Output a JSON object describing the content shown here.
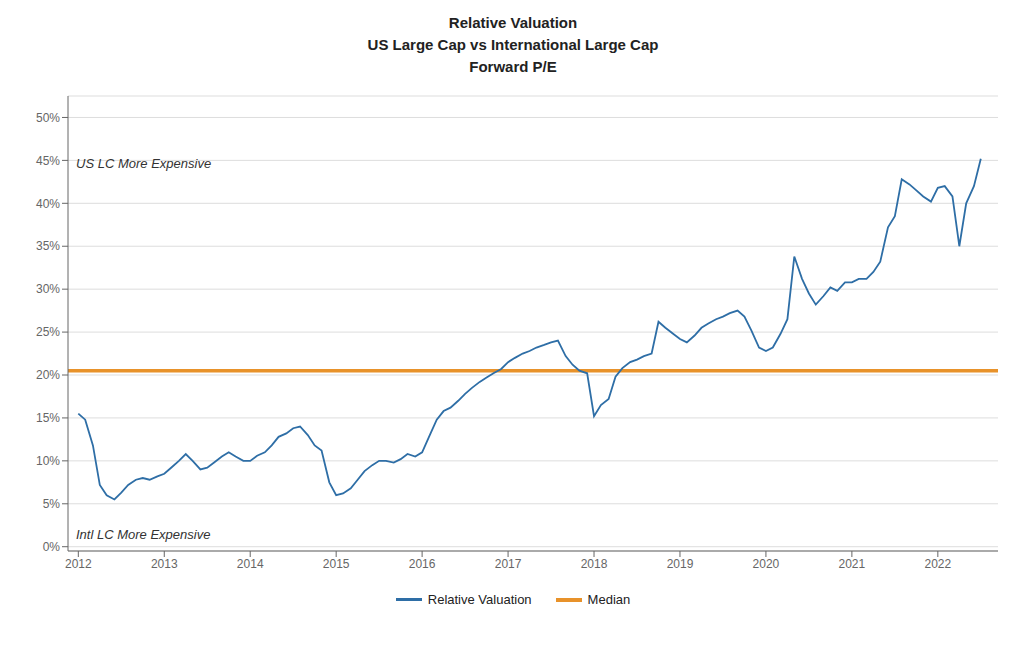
{
  "chart_data": {
    "type": "line",
    "title": "Relative Valuation\nUS Large Cap vs International Large Cap\nForward P/E",
    "x": [
      2012.0,
      2012.08,
      2012.17,
      2012.25,
      2012.33,
      2012.42,
      2012.5,
      2012.58,
      2012.67,
      2012.75,
      2012.83,
      2012.92,
      2013.0,
      2013.08,
      2013.17,
      2013.25,
      2013.33,
      2013.42,
      2013.5,
      2013.58,
      2013.67,
      2013.75,
      2013.83,
      2013.92,
      2014.0,
      2014.08,
      2014.17,
      2014.25,
      2014.33,
      2014.42,
      2014.5,
      2014.58,
      2014.67,
      2014.75,
      2014.83,
      2014.92,
      2015.0,
      2015.08,
      2015.17,
      2015.25,
      2015.33,
      2015.42,
      2015.5,
      2015.58,
      2015.67,
      2015.75,
      2015.83,
      2015.92,
      2016.0,
      2016.08,
      2016.17,
      2016.25,
      2016.33,
      2016.42,
      2016.5,
      2016.58,
      2016.67,
      2016.75,
      2016.83,
      2016.92,
      2017.0,
      2017.08,
      2017.17,
      2017.25,
      2017.33,
      2017.42,
      2017.5,
      2017.58,
      2017.67,
      2017.75,
      2017.83,
      2017.92,
      2018.0,
      2018.08,
      2018.17,
      2018.25,
      2018.33,
      2018.42,
      2018.5,
      2018.58,
      2018.67,
      2018.75,
      2018.83,
      2018.92,
      2019.0,
      2019.08,
      2019.17,
      2019.25,
      2019.33,
      2019.42,
      2019.5,
      2019.58,
      2019.67,
      2019.75,
      2019.83,
      2019.92,
      2020.0,
      2020.08,
      2020.17,
      2020.25,
      2020.33,
      2020.42,
      2020.5,
      2020.58,
      2020.67,
      2020.75,
      2020.83,
      2020.92,
      2021.0,
      2021.08,
      2021.17,
      2021.25,
      2021.33,
      2021.42,
      2021.5,
      2021.58,
      2021.67,
      2021.75,
      2021.83,
      2021.92,
      2022.0,
      2022.08,
      2022.17,
      2022.25,
      2022.33,
      2022.42,
      2022.5
    ],
    "series": [
      {
        "name": "Relative Valuation",
        "color": "#2E6EA6",
        "values": [
          0.155,
          0.148,
          0.118,
          0.072,
          0.06,
          0.055,
          0.063,
          0.072,
          0.078,
          0.08,
          0.078,
          0.082,
          0.085,
          0.092,
          0.1,
          0.108,
          0.1,
          0.09,
          0.092,
          0.098,
          0.105,
          0.11,
          0.105,
          0.1,
          0.1,
          0.106,
          0.11,
          0.118,
          0.128,
          0.132,
          0.138,
          0.14,
          0.13,
          0.118,
          0.112,
          0.075,
          0.06,
          0.062,
          0.068,
          0.078,
          0.088,
          0.095,
          0.1,
          0.1,
          0.098,
          0.102,
          0.108,
          0.105,
          0.11,
          0.128,
          0.148,
          0.158,
          0.162,
          0.17,
          0.178,
          0.185,
          0.192,
          0.197,
          0.202,
          0.207,
          0.215,
          0.22,
          0.225,
          0.228,
          0.232,
          0.235,
          0.238,
          0.24,
          0.222,
          0.212,
          0.205,
          0.202,
          0.152,
          0.165,
          0.172,
          0.198,
          0.208,
          0.215,
          0.218,
          0.222,
          0.225,
          0.262,
          0.255,
          0.248,
          0.242,
          0.238,
          0.246,
          0.255,
          0.26,
          0.265,
          0.268,
          0.272,
          0.275,
          0.268,
          0.252,
          0.232,
          0.228,
          0.232,
          0.248,
          0.265,
          0.338,
          0.312,
          0.295,
          0.282,
          0.292,
          0.302,
          0.298,
          0.308,
          0.308,
          0.312,
          0.312,
          0.32,
          0.332,
          0.372,
          0.385,
          0.428,
          0.422,
          0.415,
          0.408,
          0.402,
          0.418,
          0.42,
          0.408,
          0.35,
          0.4,
          0.42,
          0.452
        ]
      }
    ],
    "reference_lines": [
      {
        "name": "Median",
        "value": 0.205,
        "color": "#E8922A"
      }
    ],
    "annotations": [
      "US LC More Expensive",
      "Intl LC More Expensive"
    ],
    "xlim": [
      2011.88,
      2022.7
    ],
    "xticks": [
      2012,
      2013,
      2014,
      2015,
      2016,
      2017,
      2018,
      2019,
      2020,
      2021,
      2022
    ],
    "ylim": [
      -0.005,
      0.525
    ],
    "yticks": [
      {
        "value": 0.0,
        "label": "0%"
      },
      {
        "value": 0.05,
        "label": "5%"
      },
      {
        "value": 0.1,
        "label": "10%"
      },
      {
        "value": 0.15,
        "label": "15%"
      },
      {
        "value": 0.2,
        "label": "20%"
      },
      {
        "value": 0.25,
        "label": "25%"
      },
      {
        "value": 0.3,
        "label": "30%"
      },
      {
        "value": 0.35,
        "label": "35%"
      },
      {
        "value": 0.4,
        "label": "40%"
      },
      {
        "value": 0.45,
        "label": "45%"
      },
      {
        "value": 0.5,
        "label": "50%"
      }
    ],
    "grid": true
  }
}
